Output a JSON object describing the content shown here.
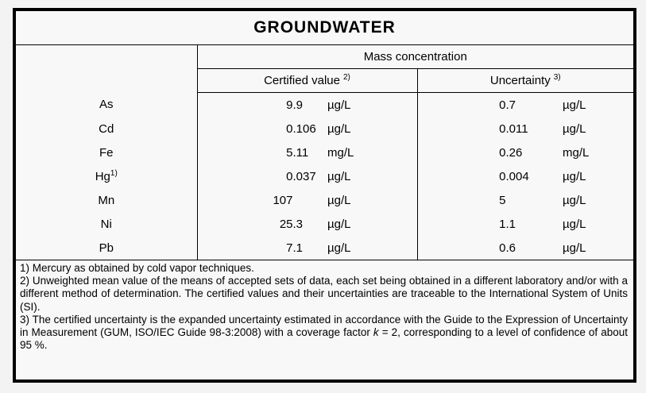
{
  "colors": {
    "page_bg": "#f3f3f3",
    "sheet_bg": "#f8f8f8",
    "border": "#000000",
    "text": "#000000"
  },
  "table": {
    "title": "GROUNDWATER",
    "group_header": "Mass concentration",
    "columns": {
      "certified": {
        "label": "Certified value",
        "sup": "2)"
      },
      "uncertainty": {
        "label": "Uncertainty",
        "sup": "3)"
      }
    },
    "rows": [
      {
        "element": "As",
        "sup": "",
        "certified": {
          "value": "9.9",
          "unit": "µg/L"
        },
        "uncertainty": {
          "value": "0.7",
          "unit": "µg/L"
        }
      },
      {
        "element": "Cd",
        "sup": "",
        "certified": {
          "value": "0.106",
          "unit": "µg/L"
        },
        "uncertainty": {
          "value": "0.011",
          "unit": "µg/L"
        }
      },
      {
        "element": "Fe",
        "sup": "",
        "certified": {
          "value": "5.11",
          "unit": "mg/L"
        },
        "uncertainty": {
          "value": "0.26",
          "unit": "mg/L"
        }
      },
      {
        "element": "Hg",
        "sup": "1)",
        "certified": {
          "value": "0.037",
          "unit": "µg/L"
        },
        "uncertainty": {
          "value": "0.004",
          "unit": "µg/L"
        }
      },
      {
        "element": "Mn",
        "sup": "",
        "certified": {
          "value": "107",
          "unit": "µg/L"
        },
        "uncertainty": {
          "value": "5",
          "unit": "µg/L"
        }
      },
      {
        "element": "Ni",
        "sup": "",
        "certified": {
          "value": "25.3",
          "unit": "µg/L"
        },
        "uncertainty": {
          "value": "1.1",
          "unit": "µg/L"
        }
      },
      {
        "element": "Pb",
        "sup": "",
        "certified": {
          "value": "7.1",
          "unit": "µg/L"
        },
        "uncertainty": {
          "value": "0.6",
          "unit": "µg/L"
        }
      }
    ]
  },
  "footnotes": [
    {
      "text": "1) Mercury as obtained by cold vapor techniques."
    },
    {
      "text": "2) Unweighted mean value of the means of accepted sets of data, each set being obtained in a different laboratory and/or with a different method of determination. The certified values and their uncertainties are traceable to the International System of Units (SI)."
    },
    {
      "text_before": "3) The certified uncertainty is the expanded uncertainty estimated in accordance with the Guide to the Expression of Uncertainty in Measurement (GUM, ISO/IEC Guide 98-3:2008) with a coverage factor ",
      "italic": "k",
      "text_after": " = 2, corresponding to a level of confidence of about 95 %."
    }
  ]
}
